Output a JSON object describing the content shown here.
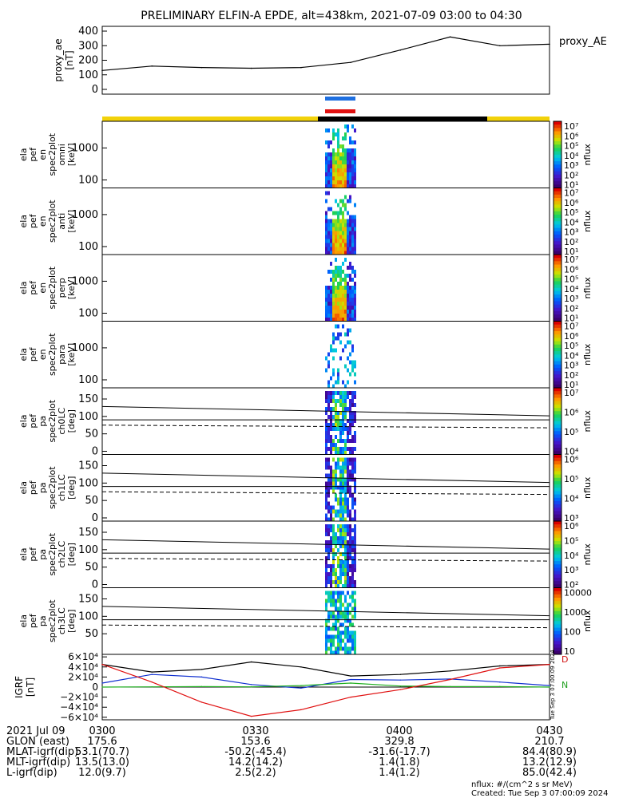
{
  "title": "PRELIMINARY ELFIN-A EPDE, alt=438km, 2021-07-09 03:00 to 04:30",
  "colors": {
    "spin_bar_blue": "#1e6fe0",
    "spin_bar_red": "#e01010",
    "science_zone_yellow": "#f2d20a",
    "science_zone_black": "#000000"
  },
  "top_panel": {
    "ylabel_lines": [
      "proxy_ae",
      "[nT]"
    ],
    "yticks": [
      "400",
      "300",
      "200",
      "100",
      "0"
    ],
    "legend": "proxy_AE"
  },
  "spec_panels": [
    {
      "ylabel_lines": [
        "ela",
        "pef",
        "en",
        "spec2plot",
        "omni",
        "[keV]"
      ],
      "yticks": [
        "1000",
        "100"
      ],
      "cbar_ticks": [
        "10⁷",
        "10⁶",
        "10⁵",
        "10⁴",
        "10³",
        "10²",
        "10¹"
      ],
      "cbar_label": "nflux"
    },
    {
      "ylabel_lines": [
        "ela",
        "pef",
        "en",
        "spec2plot",
        "anti",
        "[keV]"
      ],
      "yticks": [
        "1000",
        "100"
      ],
      "cbar_ticks": [
        "10⁷",
        "10⁶",
        "10⁵",
        "10⁴",
        "10³",
        "10²",
        "10¹"
      ],
      "cbar_label": "nflux"
    },
    {
      "ylabel_lines": [
        "ela",
        "pef",
        "en",
        "spec2plot",
        "perp",
        "[keV]"
      ],
      "yticks": [
        "1000",
        "100"
      ],
      "cbar_ticks": [
        "10⁷",
        "10⁶",
        "10⁵",
        "10⁴",
        "10³",
        "10²",
        "10¹"
      ],
      "cbar_label": "nflux"
    },
    {
      "ylabel_lines": [
        "ela",
        "pef",
        "en",
        "spec2plot",
        "para",
        "[keV]"
      ],
      "yticks": [
        "1000",
        "100"
      ],
      "cbar_ticks": [
        "10⁷",
        "10⁶",
        "10⁵",
        "10⁴",
        "10³",
        "10²",
        "10¹"
      ],
      "cbar_label": "nflux"
    },
    {
      "ylabel_lines": [
        "ela",
        "pef",
        "pa",
        "spec2plot",
        "ch0LC",
        "[deg]"
      ],
      "yticks": [
        "150",
        "100",
        "50",
        "0"
      ],
      "cbar_ticks": [
        "10⁷",
        "10⁶",
        "10⁵",
        "10⁴"
      ],
      "cbar_label": "nflux"
    },
    {
      "ylabel_lines": [
        "ela",
        "pef",
        "pa",
        "spec2plot",
        "ch1LC",
        "[deg]"
      ],
      "yticks": [
        "150",
        "100",
        "50",
        "0"
      ],
      "cbar_ticks": [
        "10⁶",
        "10⁵",
        "10⁴",
        "10³"
      ],
      "cbar_label": "nflux"
    },
    {
      "ylabel_lines": [
        "ela",
        "pef",
        "pa",
        "spec2plot",
        "ch2LC",
        "[deg]"
      ],
      "yticks": [
        "150",
        "100",
        "50",
        "0"
      ],
      "cbar_ticks": [
        "10⁶",
        "10⁵",
        "10⁴",
        "10³",
        "10²"
      ],
      "cbar_label": "nflux"
    },
    {
      "ylabel_lines": [
        "ela",
        "pef",
        "pa",
        "spec2plot",
        "ch3LC",
        "[deg]"
      ],
      "yticks": [
        "150",
        "100",
        "50"
      ],
      "cbar_ticks": [
        "10000",
        "1000",
        "100",
        "10"
      ],
      "cbar_label": "nflux"
    }
  ],
  "igrf_panel": {
    "ylabel_lines": [
      "IGRF",
      "[nT]"
    ],
    "yticks": [
      "6×10⁴",
      "4×10⁴",
      "2×10⁴",
      "0",
      "−2×10⁴",
      "−4×10⁴",
      "−6×10⁴"
    ],
    "legend": [
      "D",
      "N"
    ],
    "side_note": "Tue Sep 3 07:00:09 2024"
  },
  "footer": {
    "rows": [
      [
        "2021 Jul 09",
        "0300",
        "0330",
        "0400",
        "0430"
      ],
      [
        "GLON (east)",
        "175.6",
        "153.6",
        "329.8",
        "210.7"
      ],
      [
        "MLAT-igrf(dip)",
        "53.1(70.7)",
        "-50.2(-45.4)",
        "-31.6(-17.7)",
        "84.4(80.9)"
      ],
      [
        "MLT-igrf(dip)",
        "13.5(13.0)",
        "14.2(14.2)",
        "1.4(1.8)",
        "13.2(12.9)"
      ],
      [
        "L-igrf(dip)",
        "12.0(9.7)",
        "2.5(2.2)",
        "1.4(1.2)",
        "85.0(42.4)"
      ]
    ],
    "units_note": "nflux: #/(cm^2 s sr MeV)",
    "created_note": "Created: Tue Sep  3 07:00:09 2024"
  },
  "chart_data": [
    {
      "type": "line",
      "title": "proxy_AE",
      "x": [
        "03:00",
        "03:10",
        "03:20",
        "03:30",
        "03:40",
        "03:50",
        "04:00",
        "04:10",
        "04:20",
        "04:30"
      ],
      "series": [
        {
          "name": "proxy_AE",
          "values": [
            130,
            160,
            150,
            145,
            150,
            185,
            270,
            360,
            300,
            310
          ]
        }
      ],
      "ylim": [
        0,
        400
      ]
    },
    {
      "type": "line",
      "title": "IGRF",
      "x": [
        "03:00",
        "03:10",
        "03:20",
        "03:30",
        "03:40",
        "03:50",
        "04:00",
        "04:10",
        "04:20",
        "04:30"
      ],
      "series": [
        {
          "values": [
            45000,
            30000,
            35000,
            50000,
            40000,
            22000,
            25000,
            32000,
            42000,
            45000
          ]
        },
        {
          "values": [
            8000,
            25000,
            20000,
            5000,
            -2000,
            15000,
            14000,
            16000,
            10000,
            3000
          ]
        },
        {
          "values": [
            0,
            500,
            1000,
            500,
            3000,
            8000,
            2000,
            1000,
            1000,
            0
          ]
        },
        {
          "name": "D",
          "values": [
            45000,
            10000,
            -30000,
            -58000,
            -45000,
            -20000,
            -5000,
            15000,
            38000,
            45000
          ]
        }
      ],
      "ylim": [
        -65000,
        65000
      ]
    }
  ]
}
